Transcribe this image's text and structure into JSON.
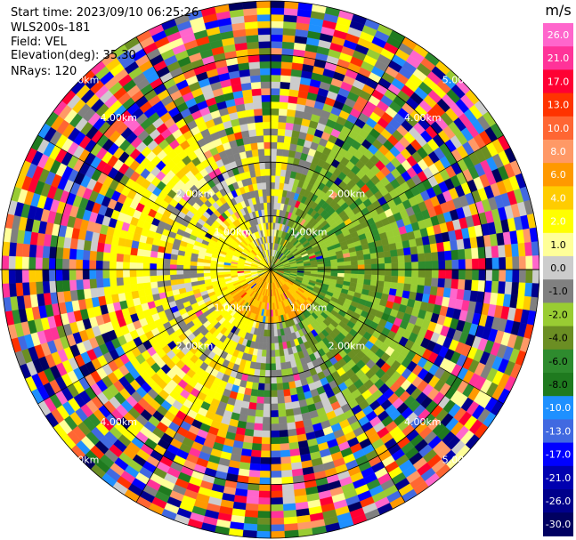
{
  "info": {
    "start_time": "Start time: 2023/09/10 06:25:26",
    "instrument": "WLS200s-181",
    "field": "Field: VEL",
    "elevation": "Elevation(deg): 35.30",
    "nrays": "NRays: 120"
  },
  "chart_data": {
    "type": "heatmap",
    "projection": "polar-ppi",
    "field": "VEL",
    "units": "m/s",
    "rays": 120,
    "range_rings_km": [
      1.0,
      2.0,
      4.0,
      5.0
    ],
    "ring_labels": [
      "1.00km",
      "2.00km",
      "4.00km",
      "5.00km"
    ],
    "max_range_km": 5.0,
    "colorbar": {
      "label": "m/s",
      "ticks": [
        "26.0",
        "21.0",
        "17.0",
        "13.0",
        "10.0",
        "8.0",
        "6.0",
        "4.0",
        "2.0",
        "1.0",
        "0.0",
        "-1.0",
        "-2.0",
        "-4.0",
        "-6.0",
        "-8.0",
        "-10.0",
        "-13.0",
        "-17.0",
        "-21.0",
        "-26.0",
        "-30.0"
      ],
      "colors": [
        "#ff66cc",
        "#ff3399",
        "#ff0033",
        "#ff3300",
        "#ff6633",
        "#ff9966",
        "#ff9900",
        "#ffcc00",
        "#ffff00",
        "#ffff99",
        "#cccccc",
        "#808080",
        "#99cc33",
        "#6b8e23",
        "#2e8b2e",
        "#1f7a1f",
        "#1e90ff",
        "#4169e1",
        "#0000ff",
        "#0000b0",
        "#00008b",
        "#000060"
      ]
    }
  }
}
